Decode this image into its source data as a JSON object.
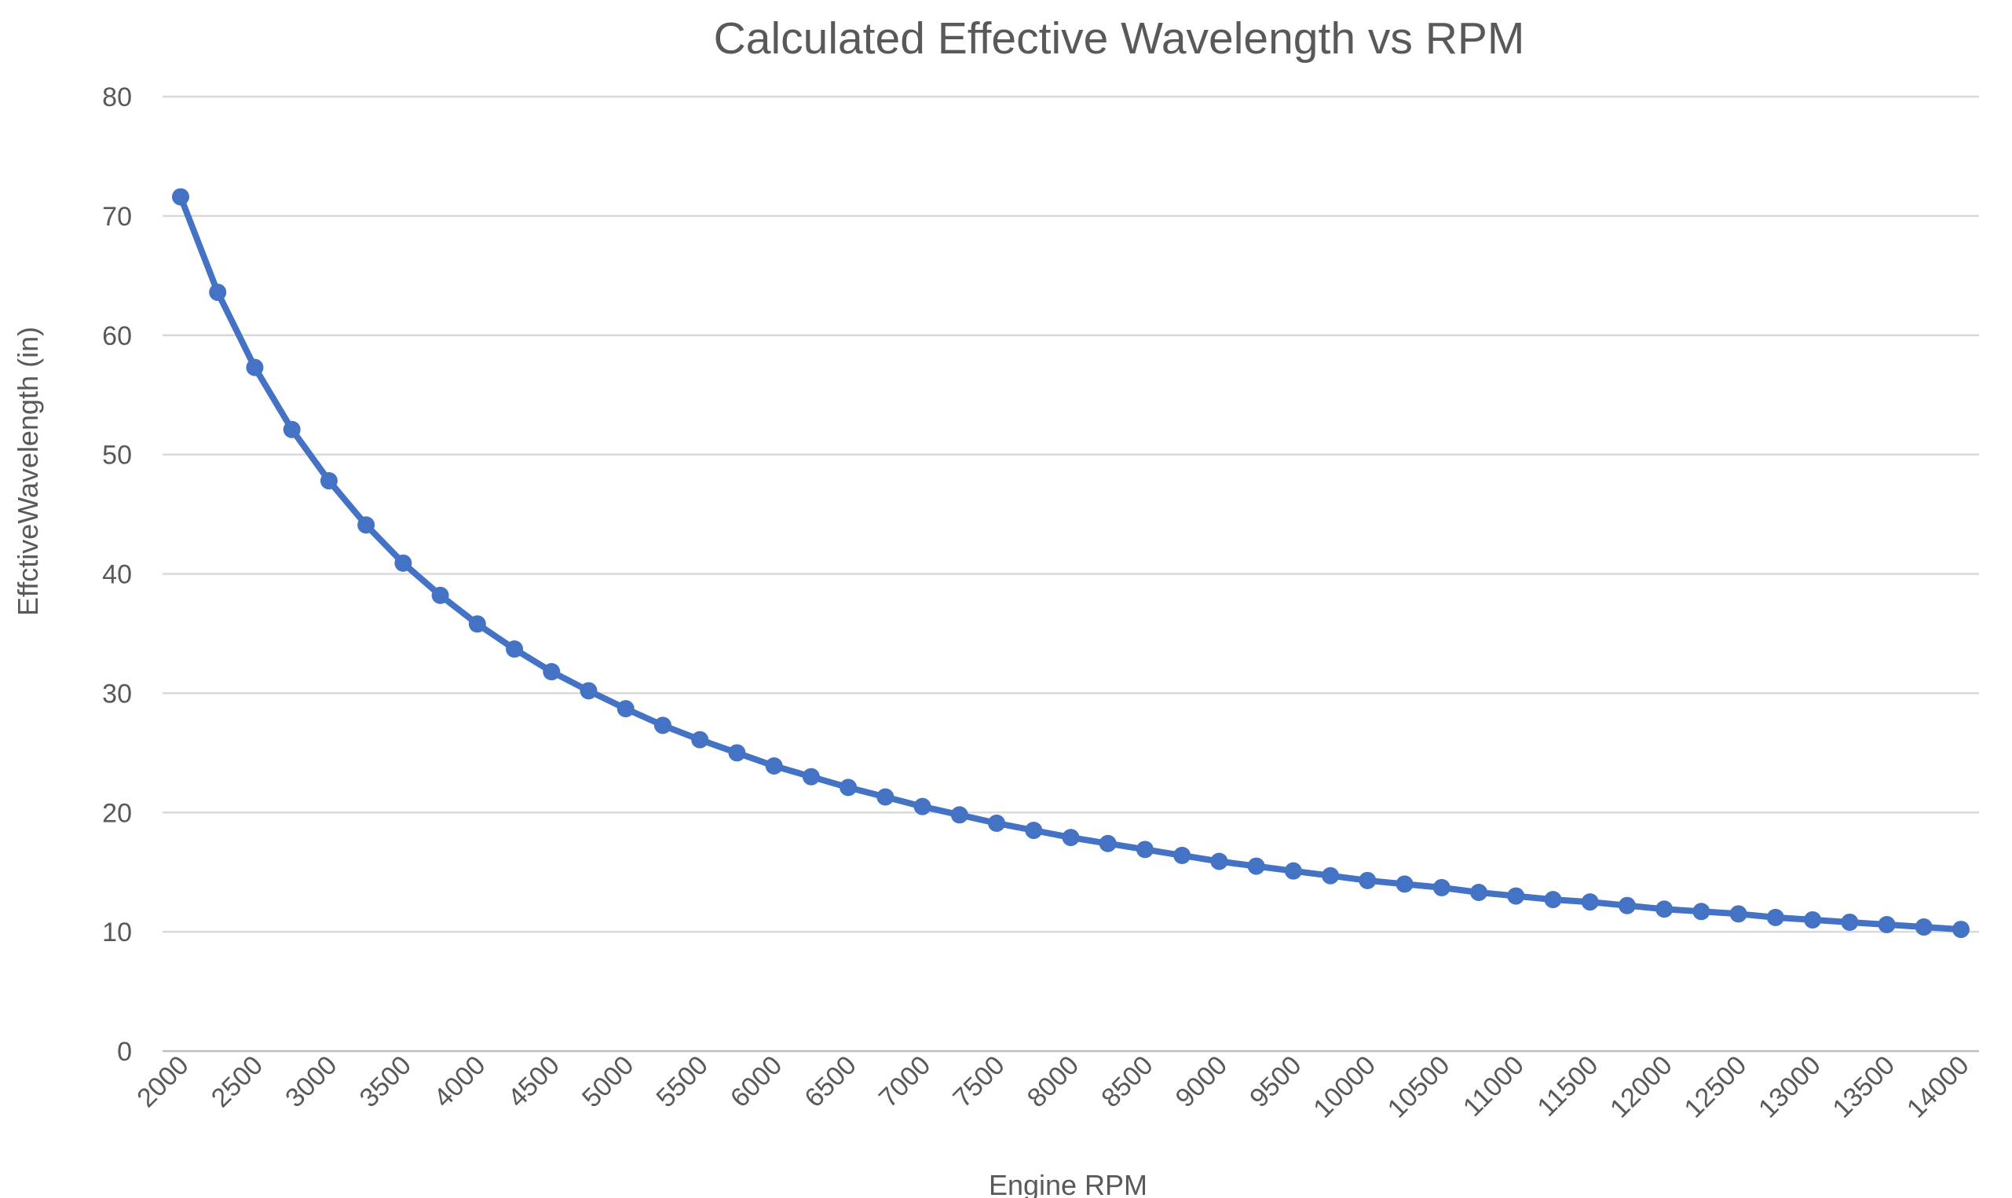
{
  "colors": {
    "series": "#4472c4",
    "gridline": "#d9d9d9",
    "text": "#595959",
    "background": "#ffffff"
  },
  "chart_data": {
    "type": "line",
    "title": "Calculated Effective Wavelength vs RPM",
    "xlabel": "Engine RPM",
    "ylabel": "EffctiveWavelength (in)",
    "ylim": [
      0,
      80
    ],
    "yticks": [
      "0",
      "10",
      "20",
      "30",
      "40",
      "50",
      "60",
      "70",
      "80"
    ],
    "categories": [
      "2000",
      "2250",
      "2500",
      "2750",
      "3000",
      "3250",
      "3500",
      "3750",
      "4000",
      "4250",
      "4500",
      "4750",
      "5000",
      "5250",
      "5500",
      "5750",
      "6000",
      "6250",
      "6500",
      "6750",
      "7000",
      "7250",
      "7500",
      "7750",
      "8000",
      "8250",
      "8500",
      "8750",
      "9000",
      "9250",
      "9500",
      "9750",
      "10000",
      "10250",
      "10500",
      "10750",
      "11000",
      "11250",
      "11500",
      "11750",
      "12000",
      "12250",
      "12500",
      "12750",
      "13000",
      "13250",
      "13500",
      "13750",
      "14000"
    ],
    "xtick_labels": [
      "2000",
      "2500",
      "3000",
      "3500",
      "4000",
      "4500",
      "5000",
      "5500",
      "6000",
      "6500",
      "7000",
      "7500",
      "8000",
      "8500",
      "9000",
      "9500",
      "10000",
      "10500",
      "11000",
      "11500",
      "12000",
      "12500",
      "13000",
      "13500",
      "14000"
    ],
    "grid": true,
    "legend": "none",
    "markers": true,
    "series": [
      {
        "values": [
          71.6,
          63.6,
          57.3,
          52.1,
          47.8,
          44.1,
          40.9,
          38.2,
          35.8,
          33.7,
          31.8,
          30.2,
          28.7,
          27.3,
          26.1,
          25.0,
          23.9,
          23.0,
          22.1,
          21.3,
          20.5,
          19.8,
          19.1,
          18.5,
          17.9,
          17.4,
          16.9,
          16.4,
          15.9,
          15.5,
          15.1,
          14.7,
          14.3,
          14.0,
          13.7,
          13.3,
          13.0,
          12.7,
          12.5,
          12.2,
          11.9,
          11.7,
          11.5,
          11.2,
          11.0,
          10.8,
          10.6,
          10.4,
          10.2
        ]
      }
    ]
  }
}
